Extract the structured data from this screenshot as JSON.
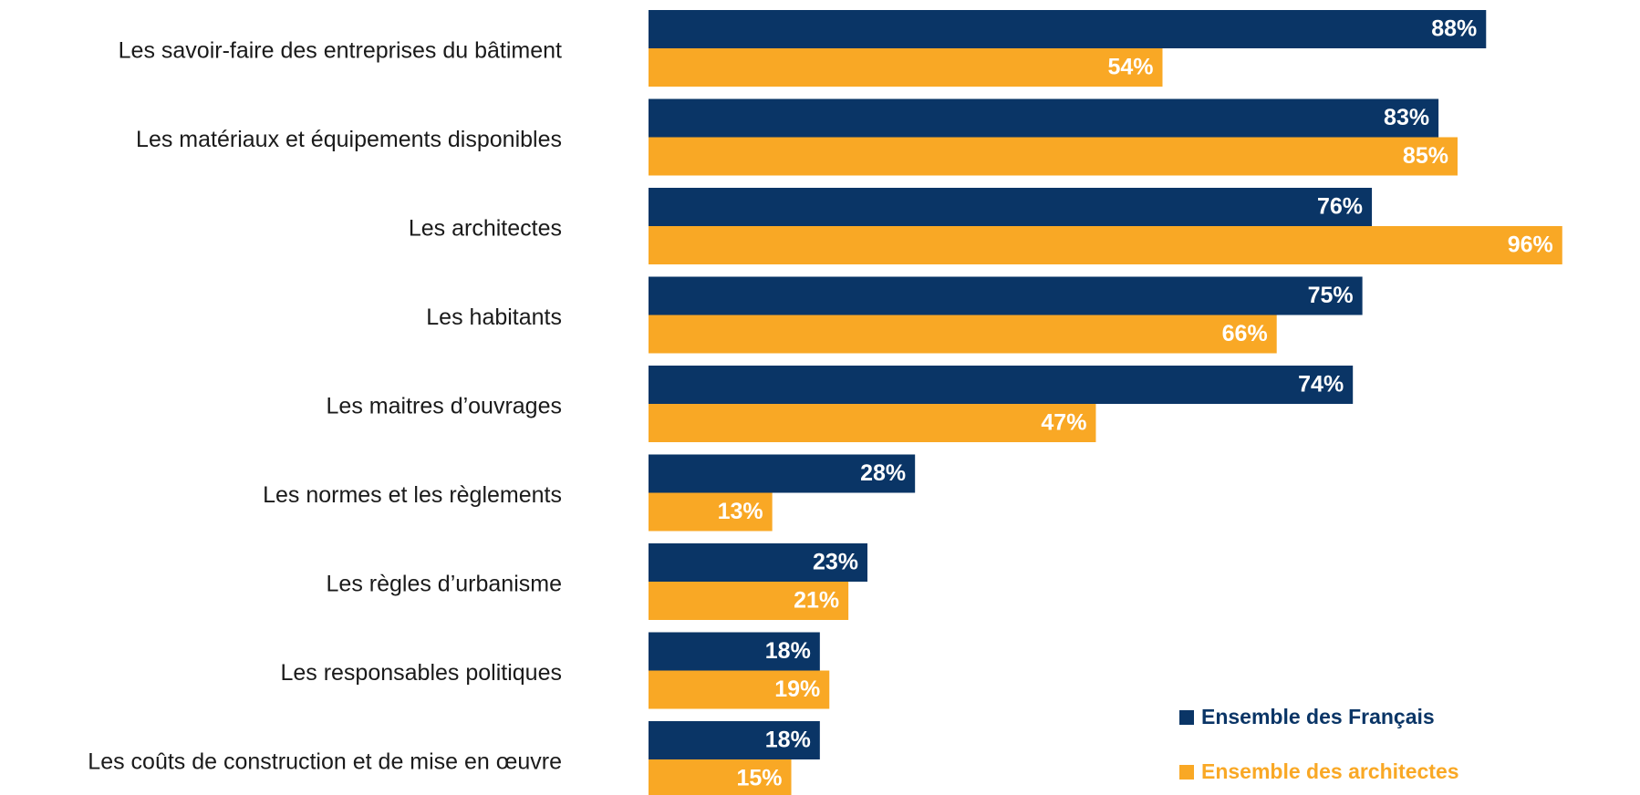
{
  "chart_data": {
    "type": "bar",
    "orientation": "horizontal",
    "categories": [
      "Les savoir-faire des entreprises du bâtiment",
      "Les matériaux et équipements disponibles",
      "Les architectes",
      "Les habitants",
      "Les maitres d’ouvrages",
      "Les normes et les règlements",
      "Les règles d’urbanisme",
      "Les responsables politiques",
      "Les coûts de construction et de mise en œuvre"
    ],
    "series": [
      {
        "name": "Ensemble des Français",
        "color": "#0a3566",
        "values": [
          88,
          83,
          76,
          75,
          74,
          28,
          23,
          18,
          18
        ],
        "labels": [
          "88%",
          "83%",
          "76%",
          "75%",
          "74%",
          "28%",
          "23%",
          "18%",
          "18%"
        ]
      },
      {
        "name": "Ensemble des architectes",
        "color": "#f9a825",
        "values": [
          54,
          85,
          96,
          66,
          47,
          13,
          21,
          19,
          15
        ],
        "labels": [
          "54%",
          "85%",
          "96%",
          "66%",
          "47%",
          "13%",
          "21%",
          "19%",
          "15%"
        ]
      }
    ],
    "xlim": [
      0,
      100
    ],
    "value_unit": "%",
    "grid": false,
    "axes_visible": false,
    "legend_position": "bottom-right"
  }
}
